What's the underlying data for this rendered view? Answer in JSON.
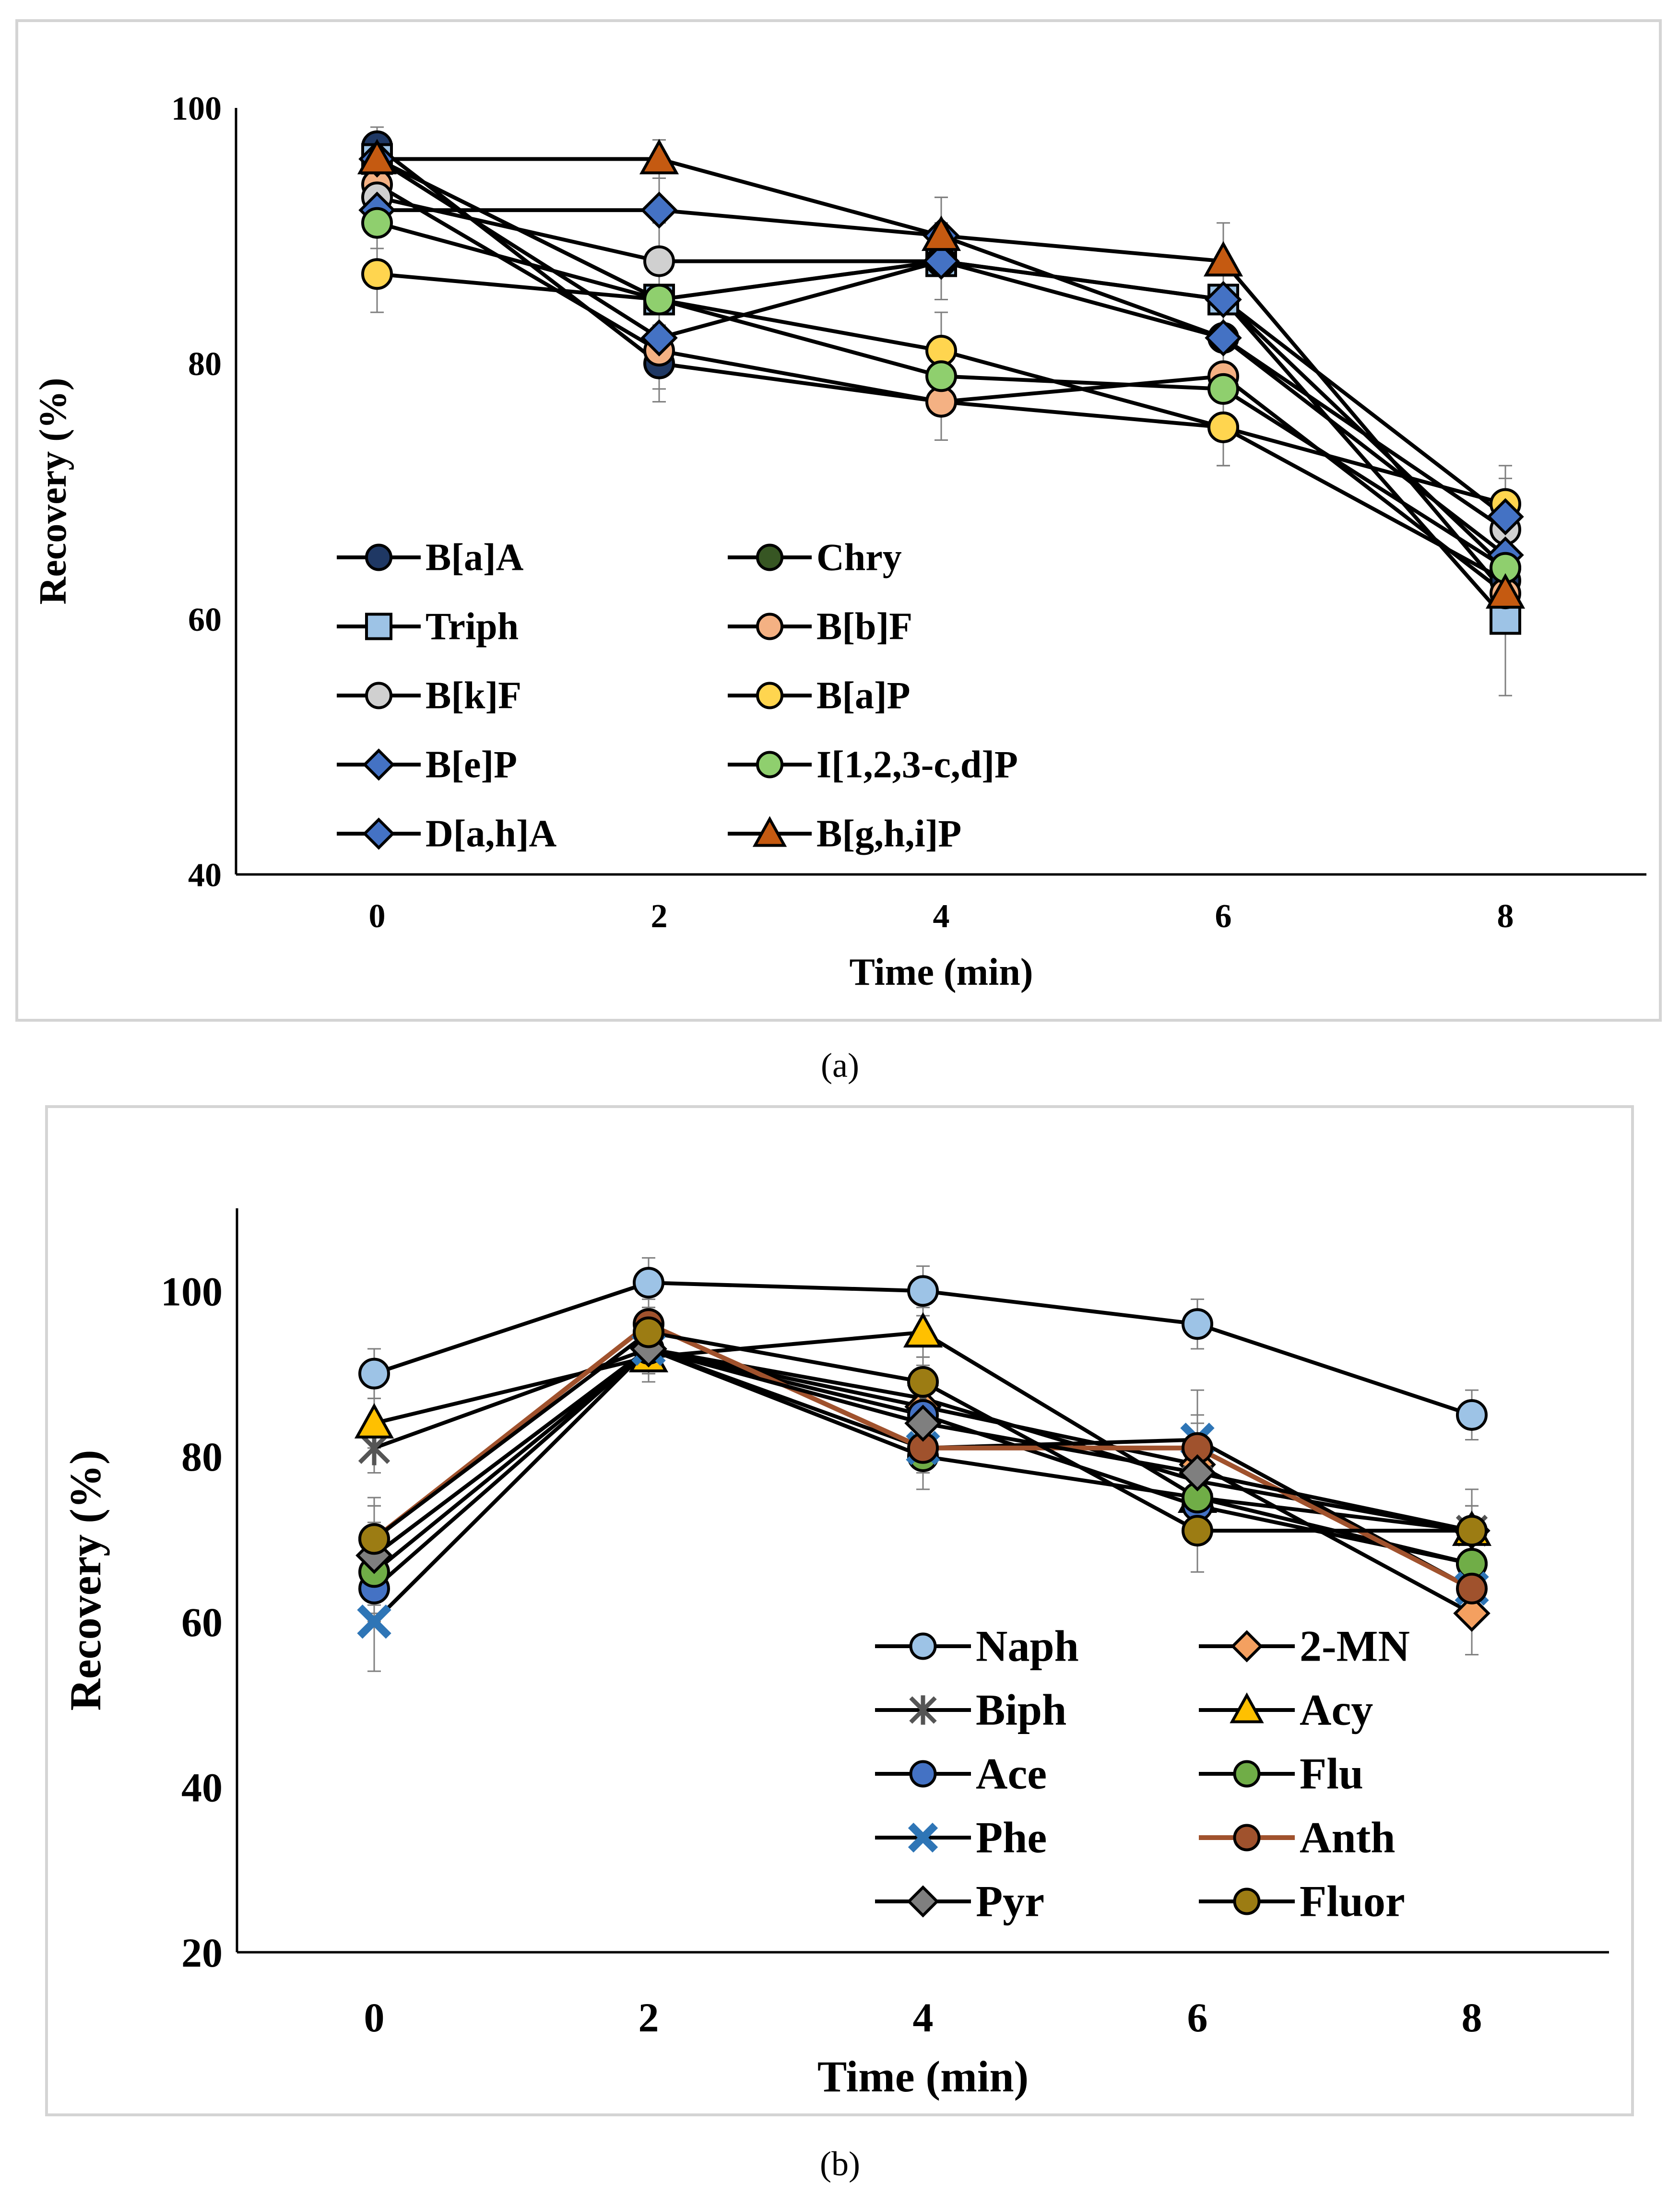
{
  "chart_data": [
    {
      "id": "a",
      "type": "line",
      "caption": "(a)",
      "xlabel": "Time (min)",
      "ylabel": "Recovery (%)",
      "x": [
        0,
        2,
        4,
        6,
        8
      ],
      "xlim": [
        -1,
        9
      ],
      "ylim": [
        40,
        100
      ],
      "yticks": [
        40,
        60,
        80,
        100
      ],
      "grid": false,
      "legend": "bottom-left",
      "series": [
        {
          "name": "B[a]A",
          "marker": "circle",
          "color": "#1f3864",
          "values": [
            97,
            80,
            77,
            75,
            63
          ],
          "err": [
            1.5,
            3,
            3,
            3,
            3
          ]
        },
        {
          "name": "Chry",
          "marker": "circle",
          "color": "#375623",
          "values": [
            96,
            85,
            88,
            85,
            64
          ],
          "err": [
            1.5,
            3,
            3,
            3,
            3
          ]
        },
        {
          "name": "Triph",
          "marker": "square",
          "color": "#9dc3e6",
          "values": [
            96,
            85,
            88,
            85,
            60
          ],
          "err": [
            1.5,
            3,
            3,
            3,
            6
          ]
        },
        {
          "name": "B[b]F",
          "marker": "circle",
          "color": "#f4b183",
          "values": [
            94,
            81,
            77,
            79,
            62
          ],
          "err": [
            2,
            3,
            3,
            3,
            3
          ]
        },
        {
          "name": "B[k]F",
          "marker": "circle",
          "color": "#d0d0d0",
          "values": [
            93,
            88,
            88,
            82,
            67
          ],
          "err": [
            2,
            3,
            3,
            3,
            3
          ]
        },
        {
          "name": "B[a]P",
          "marker": "circle",
          "color": "#ffd54f",
          "values": [
            87,
            85,
            81,
            75,
            69
          ],
          "err": [
            3,
            3,
            3,
            3,
            3
          ]
        },
        {
          "name": "B[e]P",
          "marker": "diamond",
          "color": "#4472c4",
          "values": [
            92,
            92,
            90,
            82,
            65
          ],
          "err": [
            2,
            3,
            3,
            3,
            3
          ]
        },
        {
          "name": "I[1,2,3-c,d]P",
          "marker": "circle",
          "color": "#8fcf6e",
          "values": [
            91,
            85,
            79,
            78,
            64
          ],
          "err": [
            2,
            3,
            3,
            3,
            3
          ]
        },
        {
          "name": "D[a,h]A",
          "marker": "diamond",
          "color": "#4472c4",
          "values": [
            96,
            82,
            88,
            85,
            68
          ],
          "err": [
            2,
            3,
            3,
            3,
            3
          ]
        },
        {
          "name": "B[g,h,i]P",
          "marker": "triangle",
          "color": "#c55a11",
          "values": [
            96,
            96,
            90,
            88,
            62
          ],
          "err": [
            2,
            1.5,
            3,
            3,
            3
          ]
        }
      ]
    },
    {
      "id": "b",
      "type": "line",
      "caption": "(b)",
      "xlabel": "Time (min)",
      "ylabel": "Recovery (%)",
      "x": [
        0,
        2,
        4,
        6,
        8
      ],
      "xlim": [
        -1,
        9
      ],
      "ylim": [
        20,
        110
      ],
      "yticks": [
        20,
        40,
        60,
        80,
        100
      ],
      "grid": false,
      "legend": "bottom-right",
      "series": [
        {
          "name": "Naph",
          "marker": "circle",
          "color": "#9dc3e6",
          "values": [
            90,
            101,
            100,
            96,
            85
          ],
          "err": [
            3,
            3,
            3,
            3,
            3
          ]
        },
        {
          "name": "2-MN",
          "marker": "diamond",
          "color": "#f4a060",
          "values": [
            68,
            93,
            86,
            79,
            61
          ],
          "err": [
            6,
            3,
            5,
            5,
            5
          ]
        },
        {
          "name": "Biph",
          "marker": "star",
          "color": "#888888",
          "values": [
            81,
            93,
            87,
            77,
            71
          ],
          "err": [
            3,
            3,
            3,
            3,
            3
          ]
        },
        {
          "name": "Acy",
          "marker": "triangle",
          "color": "#ffc000",
          "values": [
            84,
            92,
            95,
            75,
            71
          ],
          "err": [
            3,
            3,
            3,
            3,
            3
          ]
        },
        {
          "name": "Ace",
          "marker": "circle",
          "color": "#4472c4",
          "values": [
            64,
            93,
            85,
            74,
            67
          ],
          "err": [
            4,
            3,
            3,
            3,
            3
          ]
        },
        {
          "name": "Flu",
          "marker": "circle",
          "color": "#70ad47",
          "values": [
            66,
            93,
            80,
            75,
            67
          ],
          "err": [
            5,
            3,
            4,
            5,
            4
          ]
        },
        {
          "name": "Phe",
          "marker": "xsquare",
          "color": "#2e75b6",
          "values": [
            60,
            93,
            81,
            82,
            64
          ],
          "err": [
            6,
            3,
            3,
            6,
            4
          ]
        },
        {
          "name": "Anth",
          "marker": "circle",
          "color": "#a0522d",
          "line": "#a0522d",
          "values": [
            70,
            96,
            81,
            81,
            64
          ],
          "err": [
            4,
            3,
            3,
            4,
            3
          ]
        },
        {
          "name": "Pyr",
          "marker": "diamond",
          "color": "#7f7f7f",
          "values": [
            68,
            93,
            84,
            78,
            71
          ],
          "err": [
            4,
            3,
            3,
            3,
            3
          ]
        },
        {
          "name": "Fluor",
          "marker": "circle",
          "color": "#9c7c13",
          "values": [
            70,
            95,
            89,
            71,
            71
          ],
          "err": [
            5,
            3,
            3,
            5,
            5
          ]
        }
      ]
    }
  ]
}
